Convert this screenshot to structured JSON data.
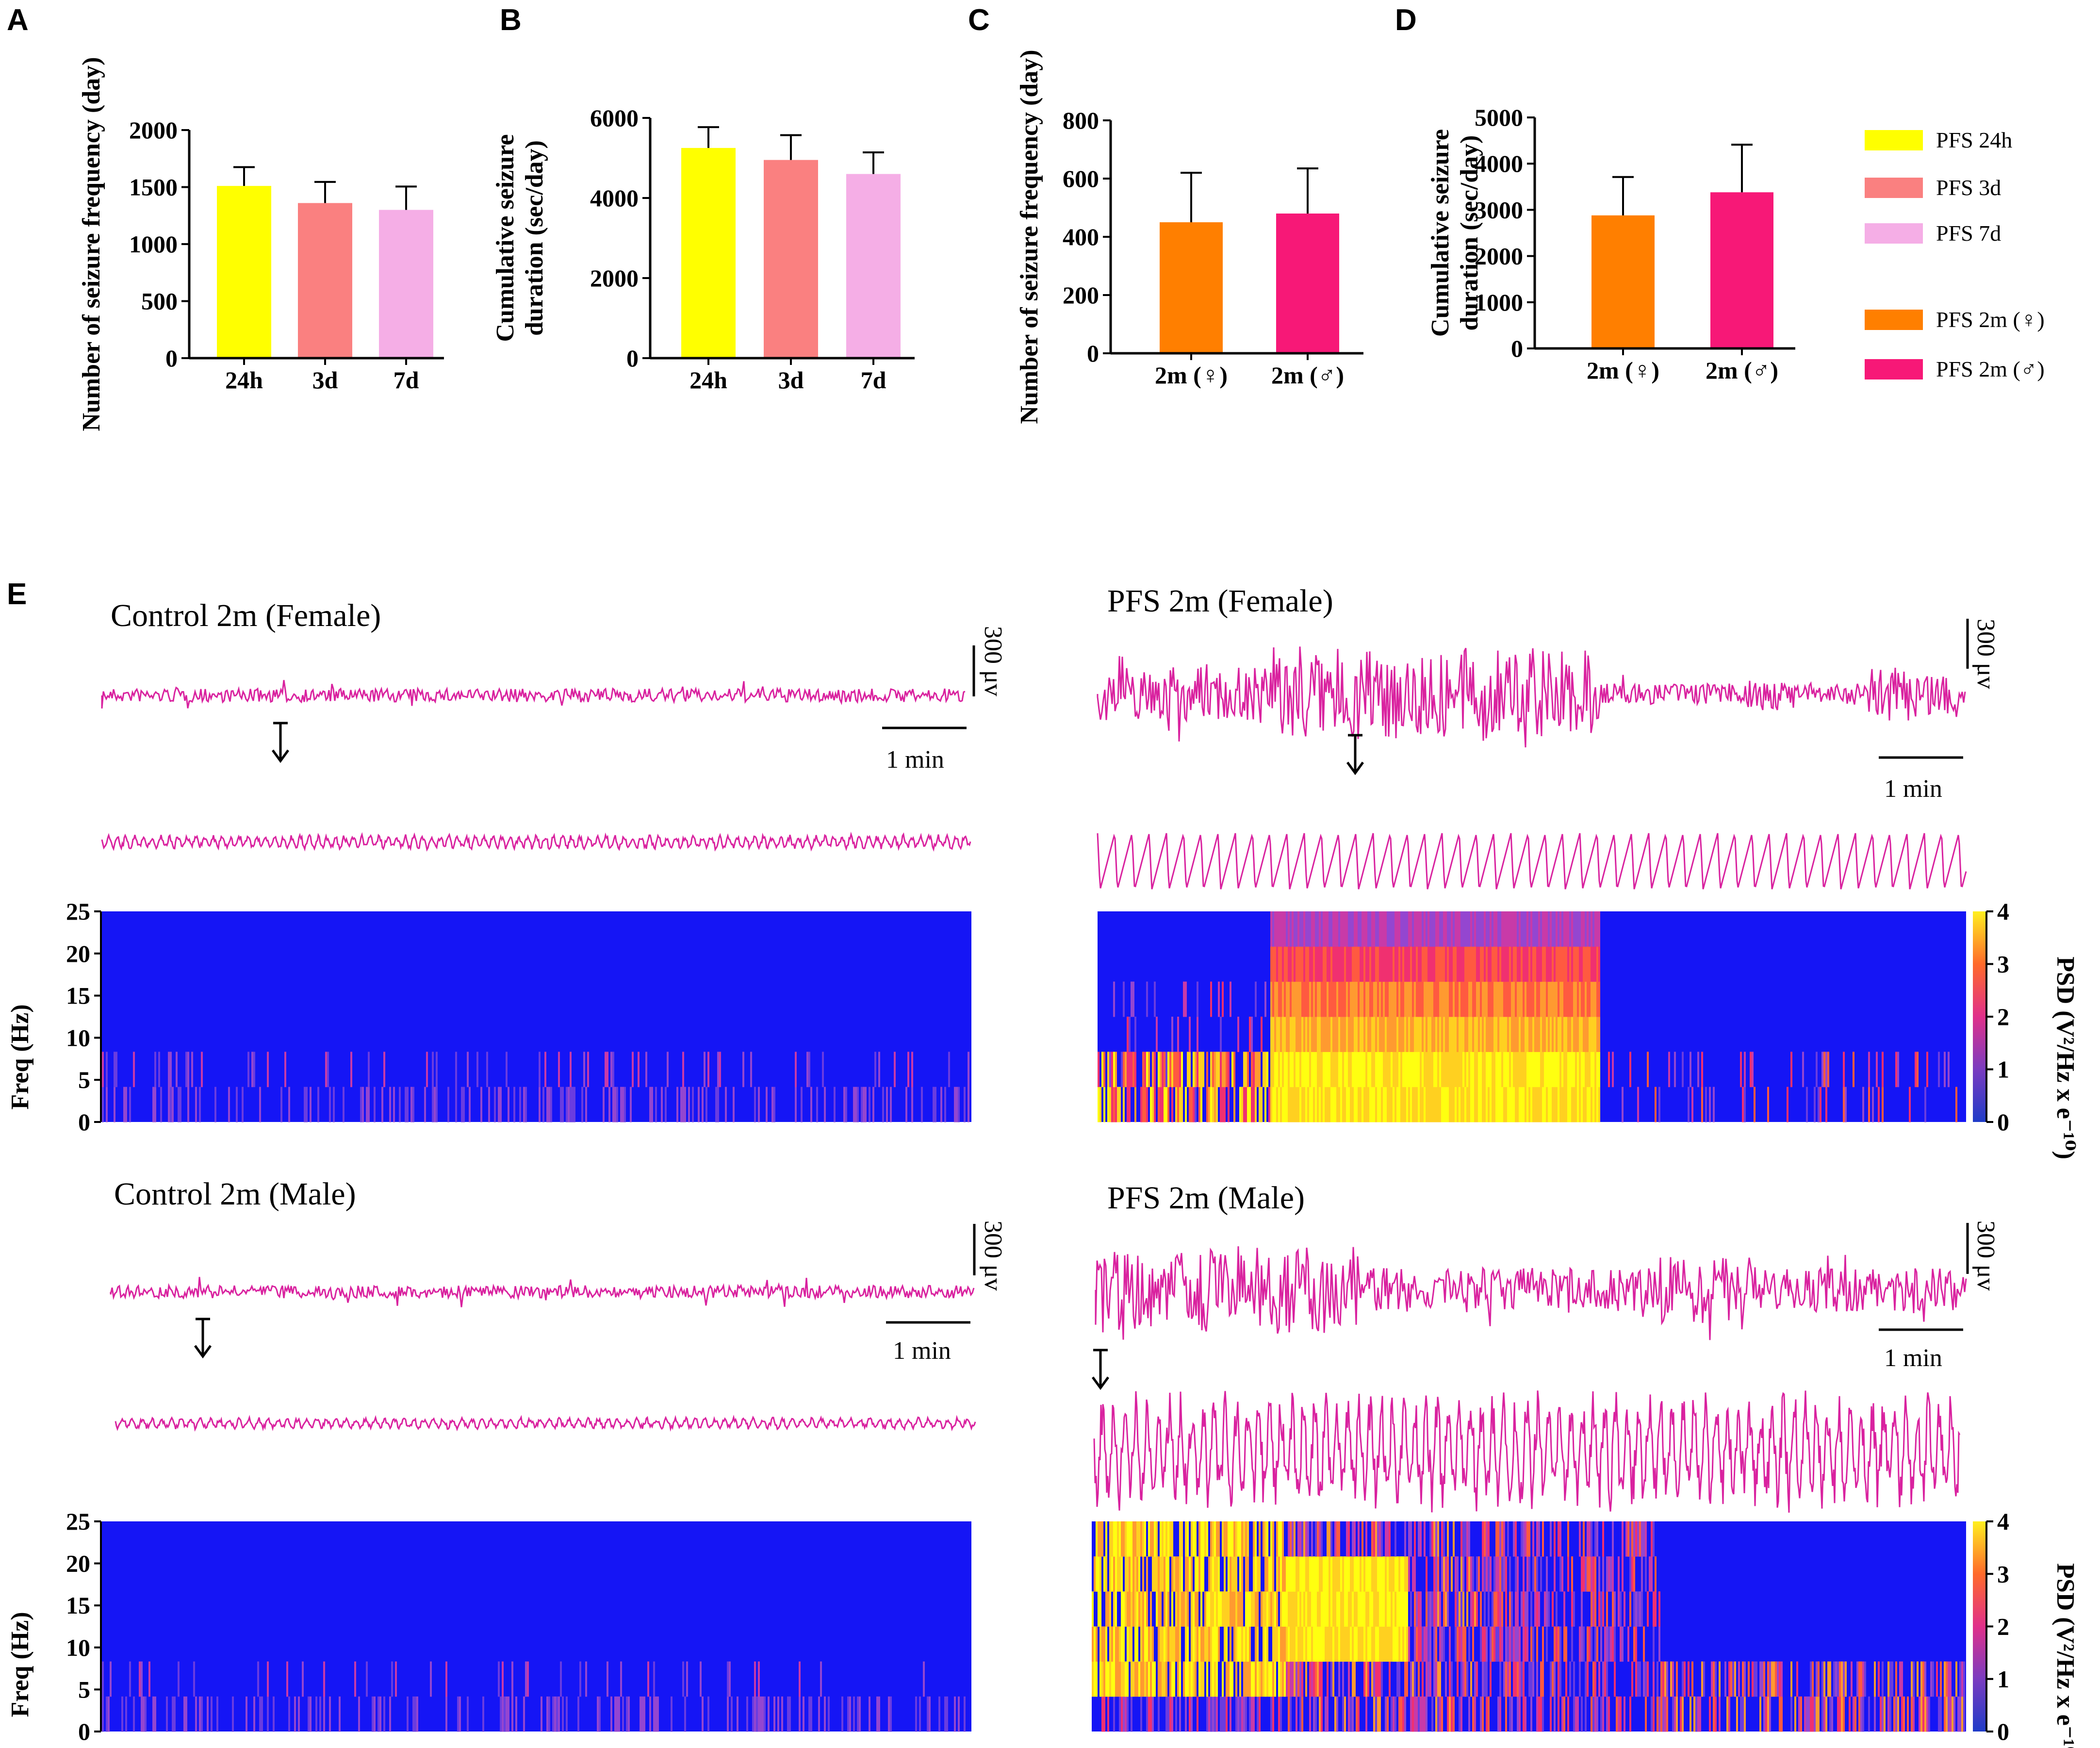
{
  "colors": {
    "pfs_24h": "#ffff00",
    "pfs_3d": "#fa8080",
    "pfs_7d": "#f5aee6",
    "pfs_2m_female": "#ff7f00",
    "pfs_2m_male": "#f71877",
    "trace": "#d9229f",
    "spectro_bg": "#1515f5",
    "axis": "#000000"
  },
  "chart_data": [
    {
      "id": "A",
      "panel_label": "A",
      "type": "bar",
      "categories": [
        "24h",
        "3d",
        "7d"
      ],
      "values": [
        1510,
        1360,
        1300
      ],
      "errors": [
        165,
        185,
        205
      ],
      "colors": [
        "#ffff00",
        "#fa8080",
        "#f5aee6"
      ],
      "ylabel": "Number of seizure frequency (day)",
      "ylim": [
        0,
        2000
      ],
      "yticks": [
        {
          "v": 0,
          "label": "0"
        },
        {
          "v": 500,
          "label": "500"
        },
        {
          "v": 1000,
          "label": "1000"
        },
        {
          "v": 1500,
          "label": "1500"
        },
        {
          "v": 2000,
          "label": "2000"
        }
      ]
    },
    {
      "id": "B",
      "panel_label": "B",
      "type": "bar",
      "categories": [
        "24h",
        "3d",
        "7d"
      ],
      "values": [
        5250,
        4950,
        4600
      ],
      "errors": [
        520,
        620,
        540
      ],
      "colors": [
        "#ffff00",
        "#fa8080",
        "#f5aee6"
      ],
      "ylabel": "Cumulative seizure",
      "ylabel2": "duration (sec/day)",
      "ylim": [
        0,
        6000
      ],
      "yticks": [
        {
          "v": 0,
          "label": "0"
        },
        {
          "v": 2000,
          "label": "2000"
        },
        {
          "v": 4000,
          "label": "4000"
        },
        {
          "v": 6000,
          "label": "6000"
        }
      ]
    },
    {
      "id": "C",
      "panel_label": "C",
      "type": "bar",
      "categories": [
        "2m (♀)",
        "2m (♂)"
      ],
      "values": [
        450,
        480
      ],
      "errors": [
        170,
        155
      ],
      "colors": [
        "#ff7f00",
        "#f71877"
      ],
      "ylabel": "Number of seizure frequency (day)",
      "ylim": [
        0,
        800
      ],
      "yticks": [
        {
          "v": 0,
          "label": "0"
        },
        {
          "v": 200,
          "label": "200"
        },
        {
          "v": 400,
          "label": "400"
        },
        {
          "v": 600,
          "label": "600"
        },
        {
          "v": 800,
          "label": "800"
        }
      ]
    },
    {
      "id": "D",
      "panel_label": "D",
      "type": "bar",
      "categories": [
        "2m (♀)",
        "2m (♂)"
      ],
      "values": [
        2880,
        3380
      ],
      "errors": [
        830,
        1030
      ],
      "colors": [
        "#ff7f00",
        "#f71877"
      ],
      "ylabel": "Cumulative seizure",
      "ylabel2": "duration (sec/day)",
      "ylim": [
        0,
        5000
      ],
      "yticks": [
        {
          "v": 0,
          "label": "0"
        },
        {
          "v": 1000,
          "label": "1000"
        },
        {
          "v": 2000,
          "label": "2000"
        },
        {
          "v": 3000,
          "label": "3000"
        },
        {
          "v": 4000,
          "label": "4000"
        },
        {
          "v": 5000,
          "label": "5000"
        }
      ]
    }
  ],
  "legend": [
    {
      "label": "PFS 24h",
      "color": "#ffff00"
    },
    {
      "label": "PFS 3d",
      "color": "#fa8080"
    },
    {
      "label": "PFS 7d",
      "color": "#f5aee6"
    },
    {
      "label": "PFS 2m (♀)",
      "color": "#ff7f00"
    },
    {
      "label": "PFS 2m (♂)",
      "color": "#f71877"
    }
  ],
  "panel_e": {
    "panel_label": "E",
    "titles": {
      "control_female": "Control 2m (Female)",
      "pfs_female": "PFS 2m (Female)",
      "control_male": "Control 2m (Male)",
      "pfs_male": "PFS 2m (Male)"
    },
    "scale_v": "300 μv",
    "scale_t": "1 min",
    "freq_label": "Freq (Hz)",
    "freq_ticks": [
      "0",
      "5",
      "10",
      "15",
      "20",
      "25"
    ],
    "psd_label": "PSD (V²/Hz x e⁻¹⁰)",
    "psd_ticks": [
      "0",
      "1",
      "2",
      "3",
      "4"
    ]
  }
}
